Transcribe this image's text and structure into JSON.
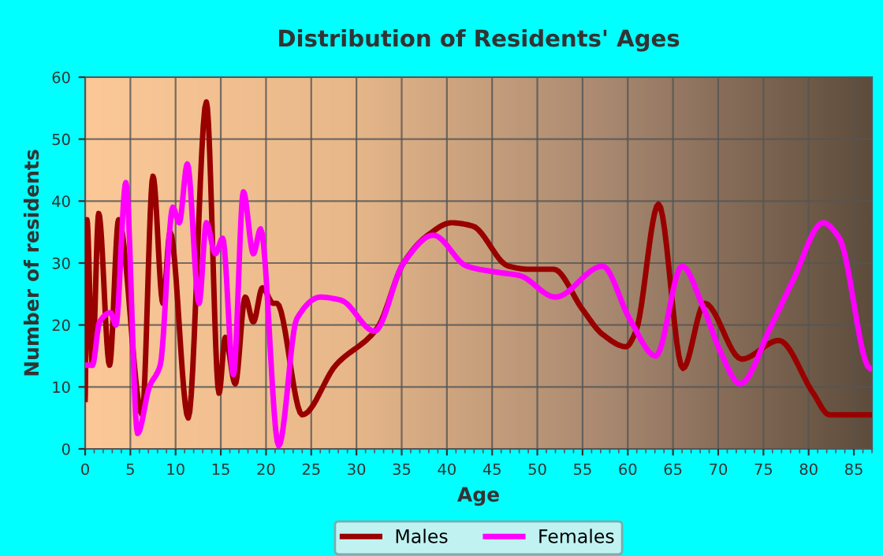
{
  "chart_data": {
    "type": "line",
    "title": "Distribution of Residents' Ages",
    "xlabel": "Age",
    "ylabel": "Number of residents",
    "xlim": [
      0,
      87
    ],
    "xticks": [
      0,
      5,
      10,
      15,
      20,
      25,
      30,
      35,
      40,
      45,
      50,
      55,
      60,
      65,
      70,
      75,
      80,
      85
    ],
    "ylim": [
      0,
      60
    ],
    "yticks": [
      0,
      10,
      20,
      30,
      40,
      50,
      60
    ],
    "grid": true,
    "legend": "bottom",
    "line_style": "solid",
    "marker": "none",
    "series": [
      {
        "name": "Males",
        "color": "#990000",
        "x": [
          0,
          0.2,
          0.8,
          1.5,
          2.7,
          3.7,
          6.3,
          7.5,
          8.6,
          9.4,
          11.4,
          13.4,
          14.8,
          15.5,
          16.6,
          17.7,
          18.6,
          19.6,
          20.8,
          21.2,
          24,
          27.7,
          32.3,
          35.2,
          37.9,
          40.5,
          42.8,
          46.8,
          49,
          51.8,
          55,
          57.2,
          59.8,
          60.9,
          63.4,
          66.1,
          68.5,
          72.6,
          76.7,
          80.5,
          82.3,
          86.8
        ],
        "values": [
          8,
          37,
          13.5,
          38,
          13.5,
          37,
          5.5,
          44,
          23.5,
          35,
          5,
          56,
          9,
          18,
          10.5,
          24.5,
          20.5,
          26,
          23.5,
          23.5,
          5.5,
          13.5,
          19.5,
          30,
          34.5,
          36.5,
          36,
          29.5,
          29,
          29,
          22.5,
          18.5,
          16.5,
          19,
          39.5,
          13,
          23.5,
          14.5,
          17.5,
          9,
          5.5,
          5.5
        ]
      },
      {
        "name": "Females",
        "color": "#ff00ff",
        "x": [
          0.2,
          0.8,
          1.6,
          2.8,
          3.4,
          4.5,
          5.8,
          7.1,
          8.3,
          9.7,
          10.4,
          11.3,
          12.6,
          13.4,
          14.4,
          15.2,
          16.4,
          17.5,
          18.6,
          19.4,
          21.4,
          23.4,
          26,
          28.3,
          32,
          35.2,
          38.5,
          42.2,
          45.6,
          48,
          52,
          57.2,
          60.2,
          63.1,
          66,
          68.3,
          70.3,
          72.4,
          75.9,
          78.2,
          81.6,
          83.4,
          86.8
        ],
        "values": [
          13.5,
          13.5,
          20.5,
          22,
          20,
          43,
          2.5,
          10,
          13.5,
          39,
          36.5,
          46,
          23.5,
          36.5,
          31.5,
          34,
          12,
          41.5,
          31.5,
          35.5,
          0.5,
          21,
          24.5,
          24,
          19,
          30,
          34.5,
          29.5,
          28.5,
          28,
          24.5,
          29.5,
          21,
          15,
          29.5,
          23,
          15.5,
          10.5,
          20,
          27,
          36.5,
          34,
          13
        ]
      }
    ]
  }
}
